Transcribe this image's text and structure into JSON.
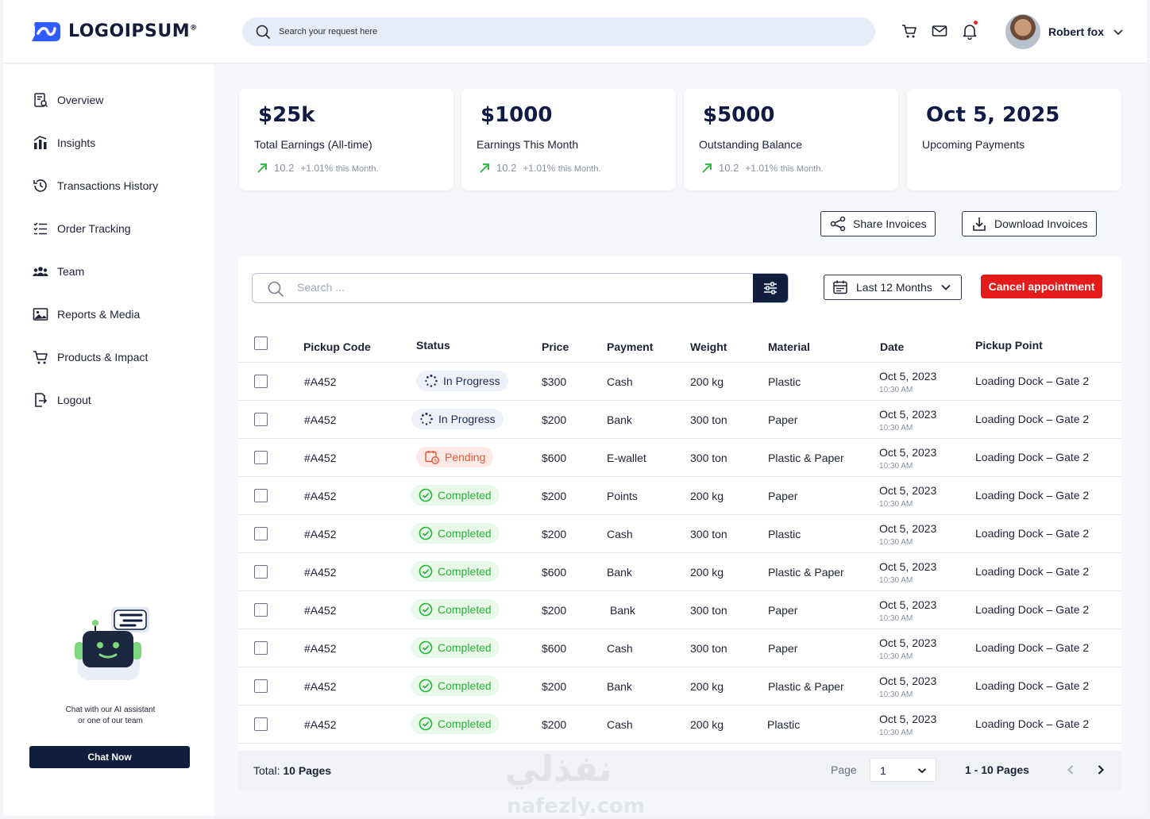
{
  "brand": {
    "name": "LOGOIPSUM",
    "mark": "®"
  },
  "header": {
    "search_placeholder": "Search your request here",
    "icons": [
      "cart-icon",
      "mail-icon",
      "bell-icon"
    ],
    "user_name": "Robert fox"
  },
  "sidebar": {
    "items": [
      {
        "label": "Overview",
        "icon": "overview-icon"
      },
      {
        "label": "Insights",
        "icon": "insights-icon"
      },
      {
        "label": "Transactions History",
        "icon": "history-icon"
      },
      {
        "label": "Order Tracking",
        "icon": "checklist-icon"
      },
      {
        "label": "Team",
        "icon": "team-icon"
      },
      {
        "label": "Reports & Media",
        "icon": "image-icon"
      },
      {
        "label": "Products & Impact",
        "icon": "cart-icon"
      },
      {
        "label": "Logout",
        "icon": "logout-icon"
      }
    ],
    "chat_text_1": "Chat with our AI assistant",
    "chat_text_2": "or one of our team",
    "chat_button": "Chat Now"
  },
  "stats": [
    {
      "value": "$25k",
      "label": "Total Earnings (All-time)",
      "trend_value": "10.2",
      "trend_pct": "+1.01%",
      "trend_period": "this Month."
    },
    {
      "value": "$1000",
      "label": "Earnings This Month",
      "trend_value": "10.2",
      "trend_pct": "+1.01%",
      "trend_period": "this Month."
    },
    {
      "value": "$5000",
      "label": "Outstanding Balance",
      "trend_value": "10.2",
      "trend_pct": "+1.01%",
      "trend_period": "this Month."
    },
    {
      "value": "Oct 5, 2025",
      "label": "Upcoming Payments"
    }
  ],
  "actions": {
    "share": "Share Invoices",
    "download": "Download Invoices"
  },
  "table": {
    "search_placeholder": "Search ...",
    "period": "Last 12 Months",
    "cancel": "Cancel appointment",
    "headers": {
      "code": "Pickup Code",
      "status": "Status",
      "price": "Price",
      "payment": "Payment",
      "weight": "Weight",
      "material": "Material",
      "date": "Date",
      "point": "Pickup Point"
    },
    "rows": [
      {
        "code": "#A452",
        "status": "In Progress",
        "kind": "progress",
        "price": "$300",
        "payment": "Cash",
        "weight": "200 kg",
        "material": "Plastic",
        "date": "Oct 5, 2023",
        "time": "10:30 AM",
        "point": "Loading Dock – Gate 2"
      },
      {
        "code": "#A452",
        "status": "In Progress",
        "kind": "progress",
        "price": "$200",
        "payment": "Bank",
        "weight": "300 ton",
        "material": "Paper",
        "date": "Oct 5, 2023",
        "time": "10:30 AM",
        "point": "Loading Dock – Gate 2"
      },
      {
        "code": "#A452",
        "status": "Pending",
        "kind": "pending",
        "price": "$600",
        "payment": "E-wallet",
        "weight": "300 ton",
        "material": "Plastic & Paper",
        "date": "Oct 5, 2023",
        "time": "10:30 AM",
        "point": "Loading Dock – Gate 2"
      },
      {
        "code": "#A452",
        "status": "Completed",
        "kind": "done",
        "price": "$200",
        "payment": "Points",
        "weight": "200 kg",
        "material": "Paper",
        "date": "Oct 5, 2023",
        "time": "10:30 AM",
        "point": "Loading Dock – Gate 2"
      },
      {
        "code": "#A452",
        "status": "Completed",
        "kind": "done",
        "price": "$200",
        "payment": "Cash",
        "weight": "300 ton",
        "material": "Plastic",
        "date": "Oct 5, 2023",
        "time": "10:30 AM",
        "point": "Loading Dock – Gate 2"
      },
      {
        "code": "#A452",
        "status": "Completed",
        "kind": "done",
        "price": "$600",
        "payment": "Bank",
        "weight": "200 kg",
        "material": "Plastic & Paper",
        "date": "Oct 5, 2023",
        "time": "10:30 AM",
        "point": "Loading Dock – Gate 2"
      },
      {
        "code": "#A452",
        "status": "Completed",
        "kind": "done",
        "price": "$200",
        "payment": "Bank",
        "weight": "300 ton",
        "material": "Paper",
        "date": "Oct 5, 2023",
        "time": "10:30 AM",
        "point": "Loading Dock – Gate 2"
      },
      {
        "code": "#A452",
        "status": "Completed",
        "kind": "done",
        "price": "$600",
        "payment": "Cash",
        "weight": "300 ton",
        "material": "Paper",
        "date": "Oct 5, 2023",
        "time": "10:30 AM",
        "point": "Loading Dock – Gate 2"
      },
      {
        "code": "#A452",
        "status": "Completed",
        "kind": "done",
        "price": "$200",
        "payment": "Bank",
        "weight": "200 kg",
        "material": "Plastic & Paper",
        "date": "Oct 5, 2023",
        "time": "10:30 AM",
        "point": "Loading Dock – Gate 2"
      },
      {
        "code": "#A452",
        "status": "Completed",
        "kind": "done",
        "price": "$200",
        "payment": "Cash",
        "weight": "200 kg",
        "material": "Plastic",
        "date": "Oct 5, 2023",
        "time": "10:30 AM",
        "point": "Loading Dock – Gate 2"
      }
    ],
    "footer": {
      "total_label": "Total:",
      "total_value": "10 Pages",
      "page_label": "Page",
      "page_value": "1",
      "pages": "1 - 10 Pages"
    }
  },
  "colors": {
    "navy": "#0f1e3c",
    "danger": "#e31b1b",
    "success": "#25b33a",
    "pending": "#e8573a",
    "brand_blue": "#2f5bff"
  }
}
